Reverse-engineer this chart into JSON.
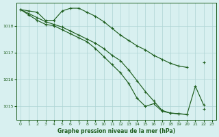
{
  "title": "Graphe pression niveau de la mer (hPa)",
  "bg_color": "#d8f0f0",
  "grid_color": "#aed4d4",
  "line_color": "#1e5e1e",
  "xlim": [
    -0.5,
    23.5
  ],
  "ylim": [
    1014.5,
    1018.85
  ],
  "yticks": [
    1015,
    1016,
    1017,
    1018
  ],
  "xticks": [
    0,
    1,
    2,
    3,
    4,
    5,
    6,
    7,
    8,
    9,
    10,
    11,
    12,
    13,
    14,
    15,
    16,
    17,
    18,
    19,
    20,
    21,
    22,
    23
  ],
  "line1": [
    1018.6,
    1018.55,
    1018.5,
    1018.2,
    1018.2,
    1018.55,
    1018.65,
    1018.65,
    1018.5,
    1018.35,
    1018.15,
    1017.9,
    1017.65,
    1017.45,
    1017.25,
    1017.1,
    1016.9,
    1016.75,
    1016.6,
    1016.5,
    1016.45,
    null,
    1016.65,
    null
  ],
  "line2": [
    1018.6,
    1018.45,
    1018.3,
    1018.15,
    1018.05,
    1017.95,
    1017.8,
    1017.65,
    1017.5,
    1017.35,
    1017.15,
    1016.9,
    1016.7,
    1016.35,
    1015.95,
    1015.55,
    1015.2,
    1014.85,
    1014.75,
    1014.72,
    1014.7,
    1015.75,
    1015.05,
    null
  ],
  "line3": [
    1018.6,
    1018.4,
    1018.2,
    1018.05,
    1018.0,
    1017.85,
    1017.7,
    1017.55,
    1017.4,
    1017.15,
    1016.85,
    1016.55,
    1016.25,
    1015.85,
    1015.3,
    1015.0,
    1015.1,
    1014.82,
    1014.75,
    1014.73,
    1014.7,
    null,
    1014.9,
    null
  ]
}
